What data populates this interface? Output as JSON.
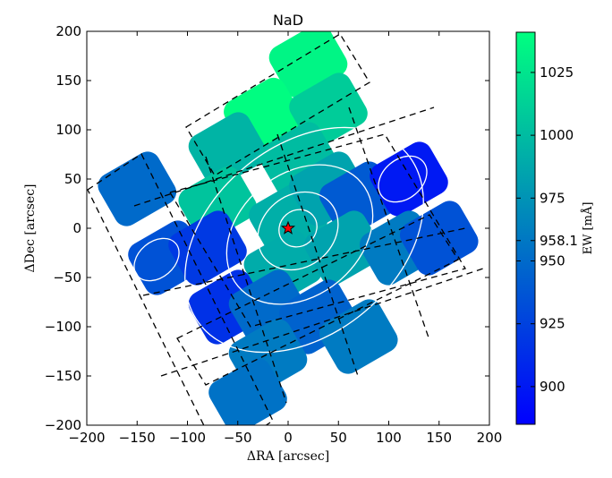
{
  "chart_data": {
    "type": "heatmap",
    "title": "NaD",
    "xlabel": "ΔRA [arcsec]",
    "ylabel": "ΔDec [arcsec]",
    "xlim": [
      -200,
      200
    ],
    "ylim": [
      -200,
      200
    ],
    "x_ticks": [
      -200,
      -150,
      -100,
      -50,
      0,
      50,
      100,
      150,
      200
    ],
    "y_ticks": [
      -200,
      -150,
      -100,
      -50,
      0,
      50,
      100,
      150,
      200
    ],
    "colorbar": {
      "label": "EW [mÅ]",
      "range": [
        885,
        1041
      ],
      "ticks": [
        900,
        925,
        950,
        958.1,
        975,
        1000,
        1025
      ],
      "color_low": "#0000ff",
      "color_high": "#00ff80"
    },
    "center_marker": {
      "x": 0,
      "y": 0,
      "symbol": "star",
      "color": "#ff0000"
    },
    "grid_on": false,
    "regions": [
      {
        "x": 20,
        "y": 170,
        "value": 1035
      },
      {
        "x": -25,
        "y": 115,
        "value": 1040
      },
      {
        "x": 40,
        "y": 120,
        "value": 1010
      },
      {
        "x": -60,
        "y": 80,
        "value": 995
      },
      {
        "x": 10,
        "y": 70,
        "value": 1000
      },
      {
        "x": -70,
        "y": 25,
        "value": 1005
      },
      {
        "x": 0,
        "y": 10,
        "value": 992
      },
      {
        "x": 40,
        "y": 40,
        "value": 985
      },
      {
        "x": 70,
        "y": 30,
        "value": 940
      },
      {
        "x": -5,
        "y": -40,
        "value": 990
      },
      {
        "x": 55,
        "y": -20,
        "value": 985
      },
      {
        "x": 120,
        "y": 50,
        "value": 900
      },
      {
        "x": 110,
        "y": -20,
        "value": 960
      },
      {
        "x": 150,
        "y": -10,
        "value": 935
      },
      {
        "x": -150,
        "y": 40,
        "value": 950
      },
      {
        "x": -120,
        "y": -30,
        "value": 935
      },
      {
        "x": -80,
        "y": -20,
        "value": 920
      },
      {
        "x": -60,
        "y": -80,
        "value": 915
      },
      {
        "x": -20,
        "y": -80,
        "value": 950
      },
      {
        "x": 30,
        "y": -90,
        "value": 945
      },
      {
        "x": 70,
        "y": -110,
        "value": 960
      },
      {
        "x": -20,
        "y": -130,
        "value": 960
      },
      {
        "x": -40,
        "y": -170,
        "value": 955
      }
    ]
  }
}
